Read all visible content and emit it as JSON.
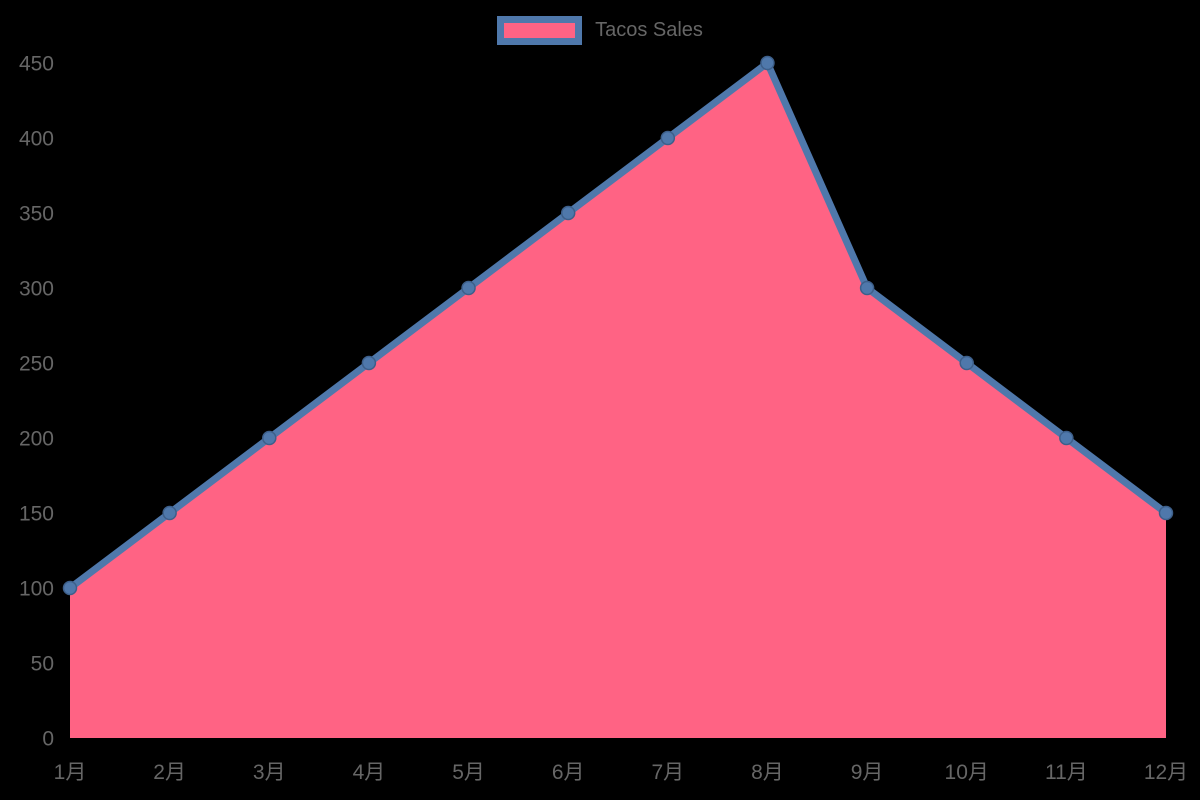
{
  "page": {
    "background": "#000000"
  },
  "legend": {
    "label": "Tacos Sales"
  },
  "chart_data": {
    "type": "area",
    "title": "",
    "categories": [
      "1月",
      "2月",
      "3月",
      "4月",
      "5月",
      "6月",
      "7月",
      "8月",
      "9月",
      "10月",
      "11月",
      "12月"
    ],
    "series": [
      {
        "name": "Tacos Sales",
        "values": [
          100,
          150,
          200,
          250,
          300,
          350,
          400,
          450,
          300,
          250,
          200,
          150
        ]
      }
    ],
    "xlabel": "",
    "ylabel": "",
    "ylim": [
      0,
      450
    ],
    "ytick_step": 50,
    "grid": false,
    "legend_position": "top-center",
    "colors": {
      "fill": "#ff6384",
      "line": "#4f78ab",
      "point": "#4f78ab",
      "point_border": "#3d5f8a",
      "tick_label": "#666666",
      "background": "#000000"
    }
  }
}
